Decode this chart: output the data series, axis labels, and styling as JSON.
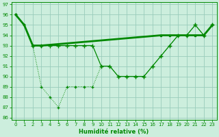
{
  "xlabel": "Humidité relative (%)",
  "bg_color": "#cceedd",
  "grid_color": "#99ccbb",
  "line_color": "#008800",
  "xlim": [
    -0.5,
    23.5
  ],
  "ylim": [
    85.8,
    97.2
  ],
  "yticks": [
    86,
    87,
    88,
    89,
    90,
    91,
    92,
    93,
    94,
    95,
    96,
    97
  ],
  "xticks": [
    0,
    1,
    2,
    3,
    4,
    5,
    6,
    7,
    8,
    9,
    10,
    11,
    12,
    13,
    14,
    15,
    16,
    17,
    18,
    19,
    20,
    21,
    22,
    23
  ],
  "line1_x": [
    0,
    1,
    2,
    3,
    17,
    18,
    19,
    20,
    21,
    22,
    23
  ],
  "line1_y": [
    96,
    95,
    93,
    93,
    94,
    94,
    94,
    94,
    94,
    94,
    95
  ],
  "line2_x": [
    2,
    3,
    4,
    5,
    6,
    7,
    8,
    9,
    10,
    11,
    12,
    13,
    14,
    15,
    16,
    17,
    18,
    19,
    20,
    21,
    22,
    23
  ],
  "line2_y": [
    93,
    93,
    93,
    93,
    93,
    93,
    93,
    93,
    91,
    91,
    90,
    90,
    90,
    90,
    91,
    92,
    93,
    94,
    94,
    95,
    94,
    95
  ],
  "line3_x": [
    0,
    1,
    2,
    3,
    4,
    5,
    6,
    7,
    8,
    9,
    10,
    11,
    12,
    13,
    14,
    15,
    16,
    17,
    18,
    19,
    20,
    21,
    22,
    23
  ],
  "line3_y": [
    96,
    95,
    93,
    89,
    88,
    87,
    89,
    89,
    89,
    89,
    91,
    91,
    90,
    90,
    90,
    90,
    91,
    92,
    93,
    94,
    94,
    95,
    94,
    95
  ]
}
